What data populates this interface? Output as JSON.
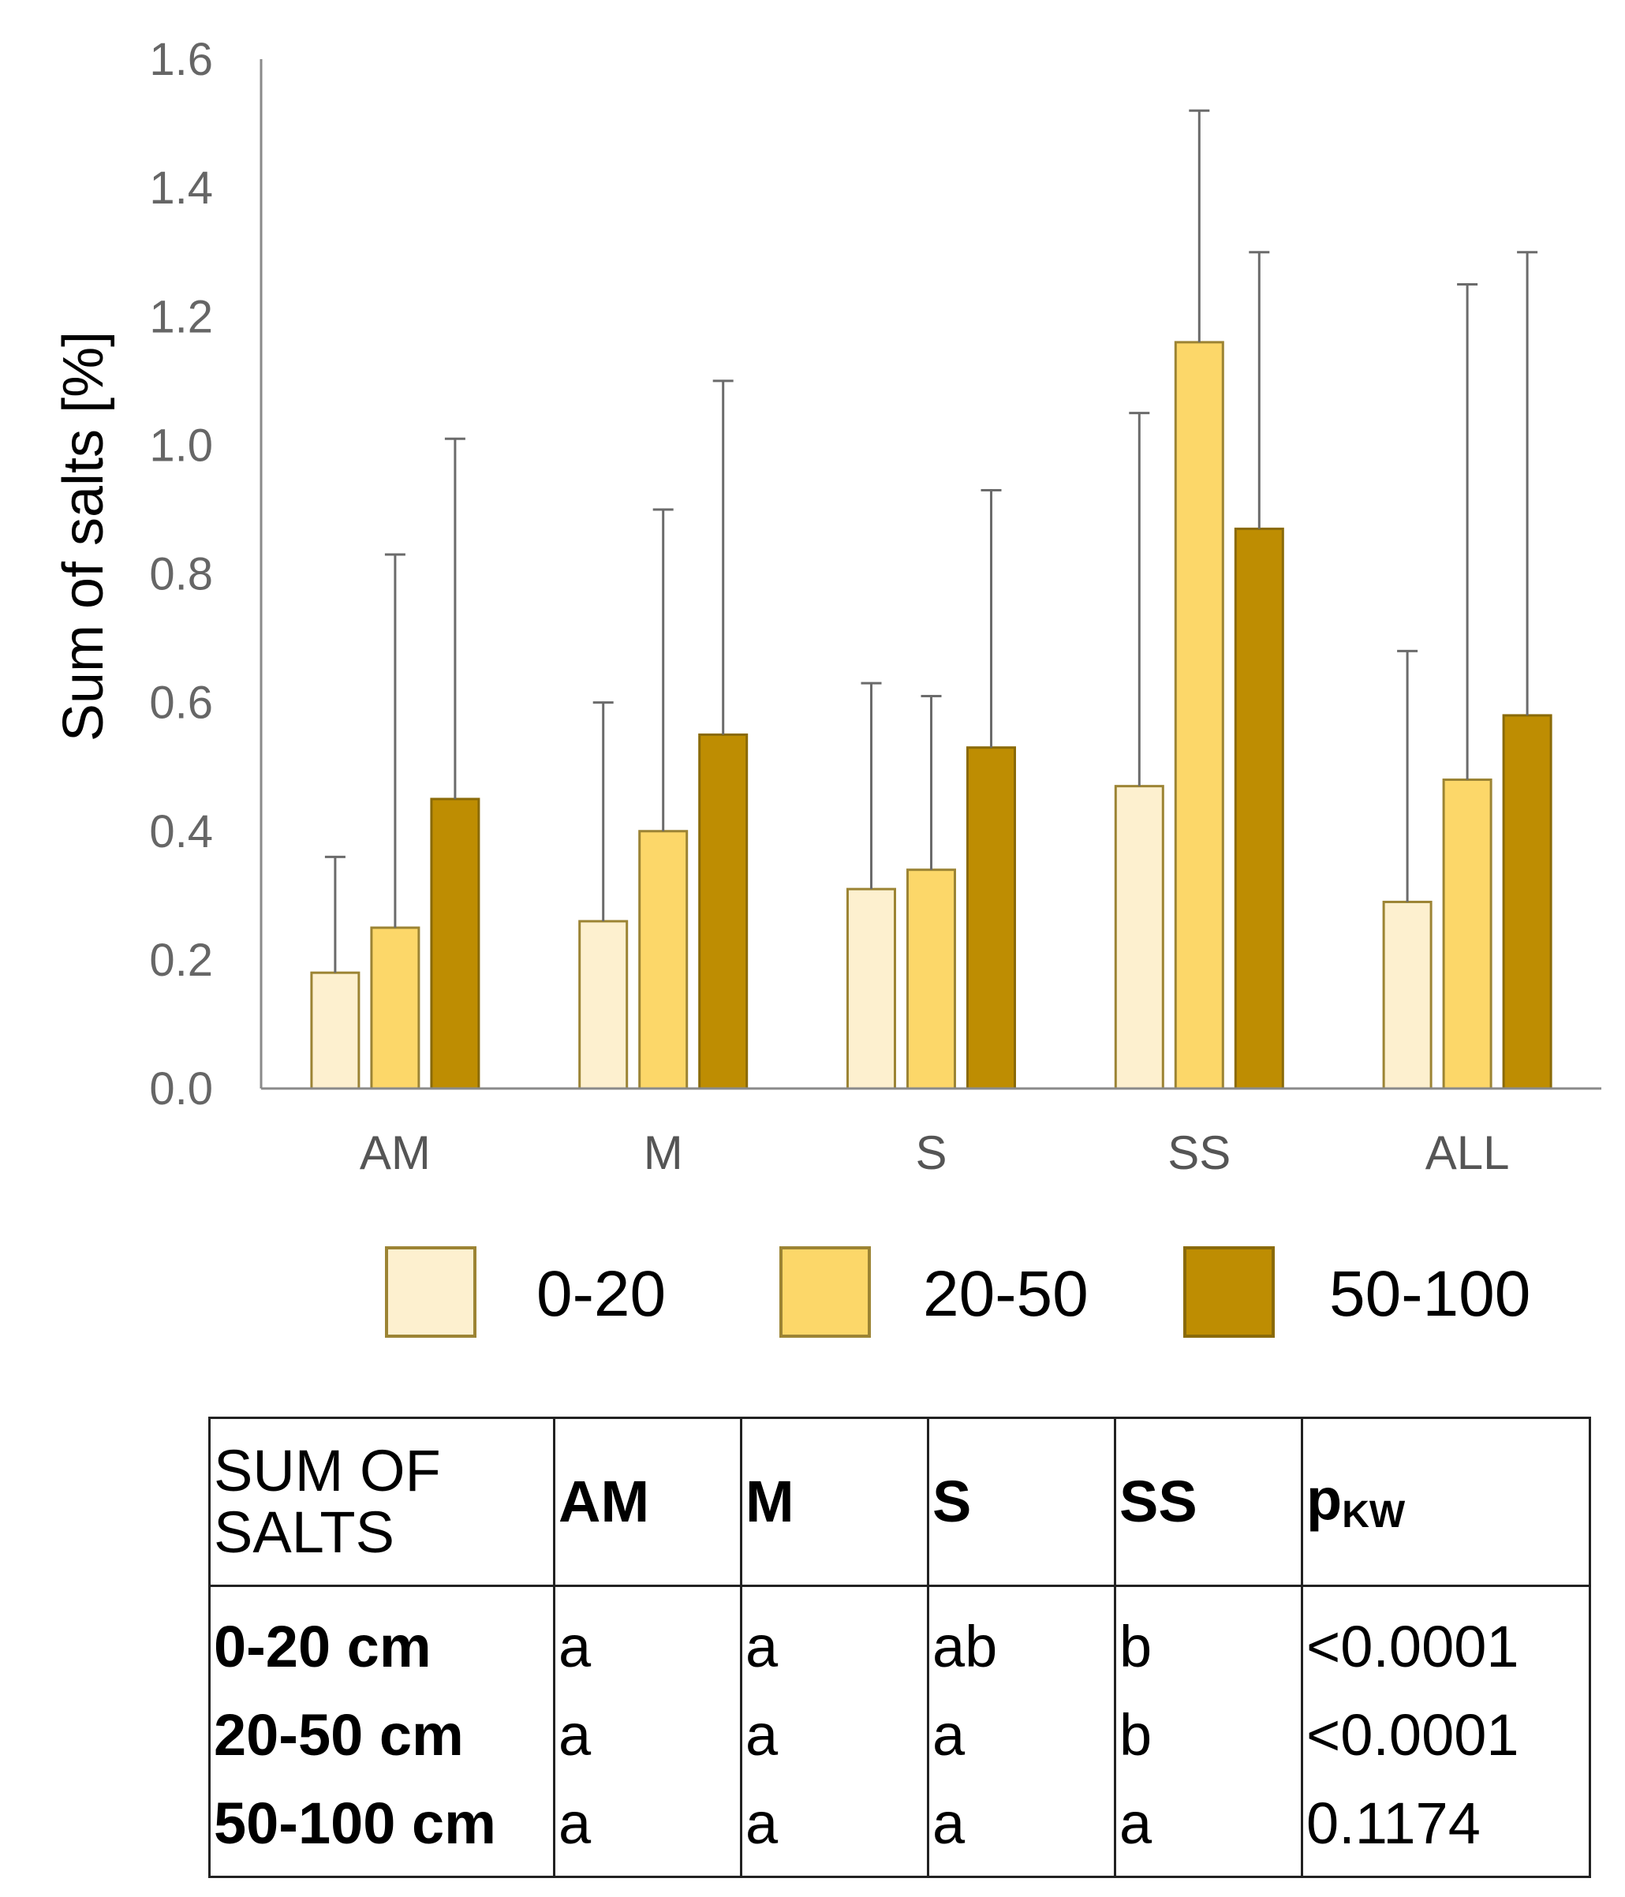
{
  "chart_data": {
    "type": "bar",
    "ylabel": "Sum of salts [%]",
    "xlabel": "",
    "ylim": [
      0,
      1.6
    ],
    "yticks": [
      "0.0",
      "0.2",
      "0.4",
      "0.6",
      "0.8",
      "1.0",
      "1.2",
      "1.4",
      "1.6"
    ],
    "categories": [
      "AM",
      "M",
      "S",
      "SS",
      "ALL"
    ],
    "series": [
      {
        "name": "0-20",
        "color": "#FDF0CF",
        "values": [
          0.18,
          0.26,
          0.31,
          0.47,
          0.29
        ],
        "error_upper": [
          0.36,
          0.6,
          0.63,
          1.05,
          0.68
        ]
      },
      {
        "name": "20-50",
        "color": "#FCD769",
        "values": [
          0.25,
          0.4,
          0.34,
          1.16,
          0.48
        ],
        "error_upper": [
          0.83,
          0.9,
          0.61,
          1.52,
          1.25
        ]
      },
      {
        "name": "50-100",
        "color": "#BE8D02",
        "values": [
          0.45,
          0.55,
          0.53,
          0.87,
          0.58
        ],
        "error_upper": [
          1.01,
          1.1,
          0.93,
          1.3,
          1.3
        ]
      }
    ],
    "legend_position": "bottom"
  },
  "table": {
    "corner_line1": "SUM OF",
    "corner_line2": "SALTS",
    "headers": [
      "AM",
      "M",
      "S",
      "SS"
    ],
    "pkw_main": "p",
    "pkw_sub": "KW",
    "rows": [
      {
        "label": "0-20 cm",
        "cells": [
          "a",
          "a",
          "ab",
          "b"
        ],
        "pkw": "<0.0001"
      },
      {
        "label": "20-50 cm",
        "cells": [
          "a",
          "a",
          "a",
          "b"
        ],
        "pkw": "<0.0001"
      },
      {
        "label": "50-100 cm",
        "cells": [
          "a",
          "a",
          "a",
          "a"
        ],
        "pkw": "0.1174"
      }
    ]
  }
}
